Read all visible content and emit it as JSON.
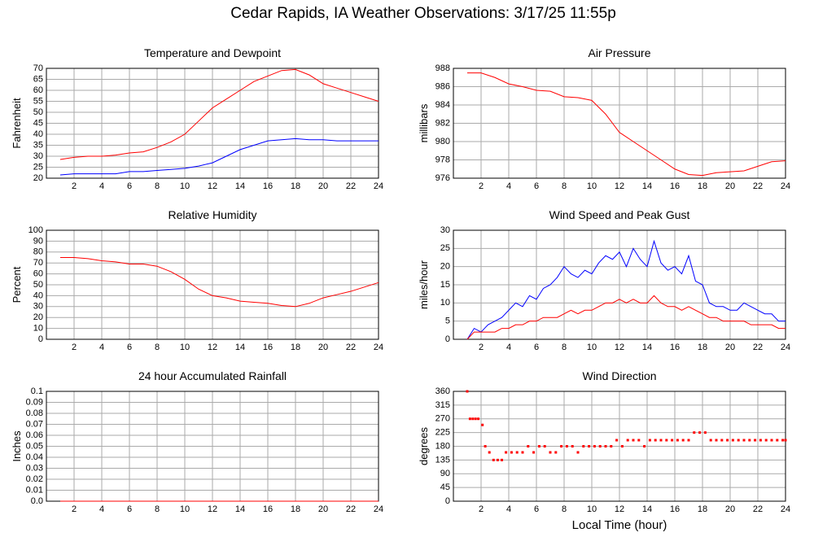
{
  "title": "Cedar Rapids, IA Weather Observations: 3/17/25 11:55p",
  "chart_data": [
    {
      "type": "line",
      "title": "Temperature and Dewpoint",
      "ylabel": "Fahrenheit",
      "x": [
        1,
        2,
        3,
        4,
        5,
        6,
        7,
        8,
        9,
        10,
        11,
        12,
        13,
        14,
        15,
        16,
        17,
        18,
        19,
        20,
        21,
        22,
        23,
        24
      ],
      "series": [
        {
          "color": "#ff0000",
          "values": [
            28.5,
            29.5,
            30,
            30,
            30.5,
            31.5,
            32,
            34,
            36.5,
            40,
            46,
            52,
            56,
            60,
            64,
            66.5,
            69,
            69.5,
            67,
            63,
            61,
            59,
            57,
            55
          ]
        },
        {
          "color": "#0000ff",
          "values": [
            21.5,
            22,
            22,
            22,
            22,
            23,
            23,
            23.5,
            24,
            24.5,
            25.5,
            27,
            30,
            33,
            35,
            37,
            37.5,
            38,
            37.5,
            37.5,
            37,
            37,
            37,
            37
          ]
        }
      ],
      "xlim": [
        0,
        24
      ],
      "xticks": [
        2,
        4,
        6,
        8,
        10,
        12,
        14,
        16,
        18,
        20,
        22,
        24
      ],
      "ylim": [
        20,
        70
      ],
      "yticks": [
        20,
        25,
        30,
        35,
        40,
        45,
        50,
        55,
        60,
        65,
        70
      ],
      "grid": true
    },
    {
      "type": "line",
      "title": "Air Pressure",
      "ylabel": "millibars",
      "x": [
        1,
        2,
        3,
        4,
        5,
        6,
        7,
        8,
        9,
        10,
        11,
        12,
        13,
        14,
        15,
        16,
        17,
        18,
        19,
        20,
        21,
        22,
        23,
        24
      ],
      "series": [
        {
          "color": "#ff0000",
          "values": [
            987.5,
            987.5,
            987,
            986.3,
            986,
            985.6,
            985.5,
            984.9,
            984.8,
            984.5,
            983,
            981,
            980,
            979,
            978,
            977,
            976.4,
            976.3,
            976.6,
            976.7,
            976.8,
            977.3,
            977.8,
            977.9
          ]
        }
      ],
      "xlim": [
        0,
        24
      ],
      "xticks": [
        2,
        4,
        6,
        8,
        10,
        12,
        14,
        16,
        18,
        20,
        22,
        24
      ],
      "ylim": [
        976,
        988
      ],
      "yticks": [
        976,
        978,
        980,
        982,
        984,
        986,
        988
      ],
      "grid": true
    },
    {
      "type": "line",
      "title": "Relative Humidity",
      "ylabel": "Percent",
      "x": [
        1,
        2,
        3,
        4,
        5,
        6,
        7,
        8,
        9,
        10,
        11,
        12,
        13,
        14,
        15,
        16,
        17,
        18,
        19,
        20,
        21,
        22,
        23,
        24
      ],
      "series": [
        {
          "color": "#ff0000",
          "values": [
            75,
            75,
            74,
            72,
            71,
            69,
            69,
            67,
            62,
            55,
            46,
            40,
            38,
            35,
            34,
            33,
            31,
            30,
            33,
            38,
            41,
            44,
            48,
            52
          ]
        }
      ],
      "xlim": [
        0,
        24
      ],
      "xticks": [
        2,
        4,
        6,
        8,
        10,
        12,
        14,
        16,
        18,
        20,
        22,
        24
      ],
      "ylim": [
        0,
        100
      ],
      "yticks": [
        0,
        10,
        20,
        30,
        40,
        50,
        60,
        70,
        80,
        90,
        100
      ],
      "grid": true
    },
    {
      "type": "line",
      "title": "Wind Speed and Peak Gust",
      "ylabel": "miles/hour",
      "x": [
        1,
        1.5,
        2,
        2.5,
        3,
        3.5,
        4,
        4.5,
        5,
        5.5,
        6,
        6.5,
        7,
        7.5,
        8,
        8.5,
        9,
        9.5,
        10,
        10.5,
        11,
        11.5,
        12,
        12.5,
        13,
        13.5,
        14,
        14.5,
        15,
        15.5,
        16,
        16.5,
        17,
        17.5,
        18,
        18.5,
        19,
        19.5,
        20,
        20.5,
        21,
        21.5,
        22,
        22.5,
        23,
        23.5,
        24
      ],
      "series": [
        {
          "color": "#0000ff",
          "values": [
            0,
            3,
            2,
            4,
            5,
            6,
            8,
            10,
            9,
            12,
            11,
            14,
            15,
            17,
            20,
            18,
            17,
            19,
            18,
            21,
            23,
            22,
            24,
            20,
            25,
            22,
            20,
            27,
            21,
            19,
            20,
            18,
            23,
            16,
            15,
            10,
            9,
            9,
            8,
            8,
            10,
            9,
            8,
            7,
            7,
            5,
            5
          ]
        },
        {
          "color": "#ff0000",
          "values": [
            0,
            2,
            2,
            2,
            2,
            3,
            3,
            4,
            4,
            5,
            5,
            6,
            6,
            6,
            7,
            8,
            7,
            8,
            8,
            9,
            10,
            10,
            11,
            10,
            11,
            10,
            10,
            12,
            10,
            9,
            9,
            8,
            9,
            8,
            7,
            6,
            6,
            5,
            5,
            5,
            5,
            4,
            4,
            4,
            4,
            3,
            3
          ]
        }
      ],
      "xlim": [
        0,
        24
      ],
      "xticks": [
        2,
        4,
        6,
        8,
        10,
        12,
        14,
        16,
        18,
        20,
        22,
        24
      ],
      "ylim": [
        0,
        30
      ],
      "yticks": [
        0,
        5,
        10,
        15,
        20,
        25,
        30
      ],
      "grid": true
    },
    {
      "type": "line",
      "title": "24 hour Accumulated Rainfall",
      "ylabel": "Inches",
      "x": [
        1,
        24
      ],
      "series": [
        {
          "color": "#ff0000",
          "values": [
            0,
            0
          ]
        }
      ],
      "xlim": [
        0,
        24
      ],
      "xticks": [
        2,
        4,
        6,
        8,
        10,
        12,
        14,
        16,
        18,
        20,
        22,
        24
      ],
      "ylim": [
        0,
        0.1
      ],
      "yticks": [
        {
          "value": 0,
          "label": "0.0"
        },
        0.01,
        0.02,
        0.03,
        0.04,
        0.05,
        0.06,
        0.07,
        0.08,
        0.09,
        0.1
      ],
      "grid": true
    },
    {
      "type": "scatter",
      "title": "Wind Direction",
      "ylabel": "degrees",
      "xlabel": "Local Time (hour)",
      "color": "#ff0000",
      "x": [
        1,
        1.2,
        1.4,
        1.6,
        1.8,
        2.1,
        2.3,
        2.6,
        2.9,
        3.2,
        3.5,
        3.8,
        4.2,
        4.6,
        5,
        5.4,
        5.8,
        6.2,
        6.6,
        7,
        7.4,
        7.8,
        8.2,
        8.6,
        9,
        9.4,
        9.8,
        10.2,
        10.6,
        11,
        11.4,
        11.8,
        12.2,
        12.6,
        13,
        13.4,
        13.8,
        14.2,
        14.6,
        15,
        15.4,
        15.8,
        16.2,
        16.6,
        17,
        17.4,
        17.8,
        18.2,
        18.6,
        19,
        19.4,
        19.8,
        20.2,
        20.6,
        21,
        21.4,
        21.8,
        22.2,
        22.6,
        23,
        23.4,
        23.8,
        24
      ],
      "values": [
        360,
        270,
        270,
        270,
        270,
        250,
        180,
        160,
        135,
        135,
        135,
        160,
        160,
        160,
        160,
        180,
        160,
        180,
        180,
        160,
        160,
        180,
        180,
        180,
        160,
        180,
        180,
        180,
        180,
        180,
        180,
        200,
        180,
        200,
        200,
        200,
        180,
        200,
        200,
        200,
        200,
        200,
        200,
        200,
        200,
        225,
        225,
        225,
        200,
        200,
        200,
        200,
        200,
        200,
        200,
        200,
        200,
        200,
        200,
        200,
        200,
        200,
        200
      ],
      "xlim": [
        0,
        24
      ],
      "xticks": [
        2,
        4,
        6,
        8,
        10,
        12,
        14,
        16,
        18,
        20,
        22,
        24
      ],
      "ylim": [
        0,
        360
      ],
      "yticks": [
        0,
        45,
        90,
        135,
        180,
        225,
        270,
        315,
        360
      ],
      "grid": true
    }
  ]
}
